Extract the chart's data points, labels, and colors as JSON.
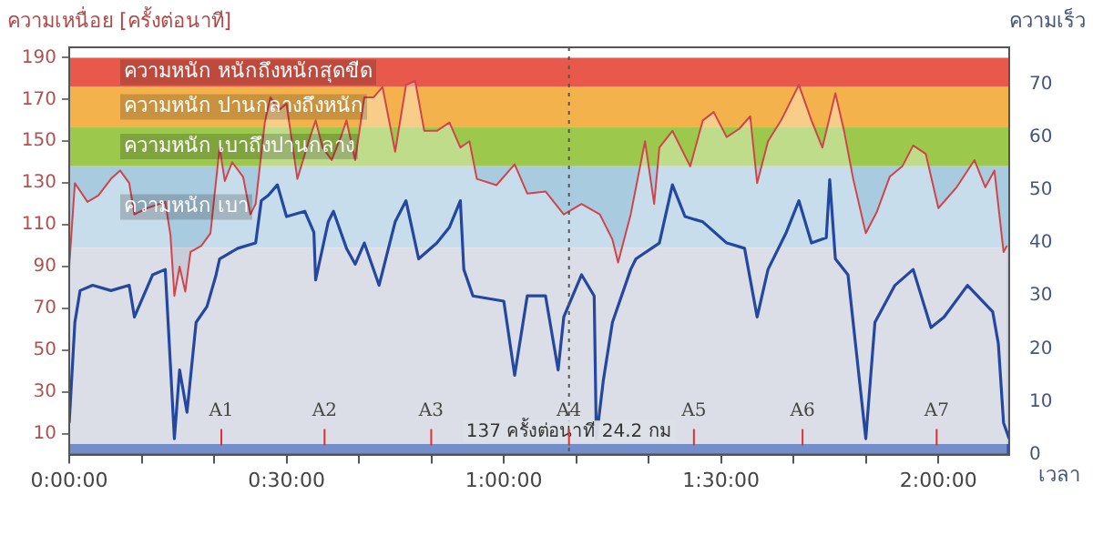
{
  "chart_data": {
    "type": "line",
    "ylabel": "ความเหนื่อย [ครั้งต่อนาที]",
    "y2label": "ความเร็ว",
    "xlabel": "เวลา",
    "xlim": [
      0,
      2.163
    ],
    "xticks": [
      {
        "value": 0,
        "label": "0:00:00"
      },
      {
        "value": 0.1667,
        "label": null
      },
      {
        "value": 0.3333,
        "label": null
      },
      {
        "value": 0.5,
        "label": "0:30:00"
      },
      {
        "value": 0.6667,
        "label": null
      },
      {
        "value": 0.8333,
        "label": null
      },
      {
        "value": 1,
        "label": "1:00:00"
      },
      {
        "value": 1.1667,
        "label": null
      },
      {
        "value": 1.3333,
        "label": null
      },
      {
        "value": 1.5,
        "label": "1:30:00"
      },
      {
        "value": 1.6667,
        "label": null
      },
      {
        "value": 1.8333,
        "label": null
      },
      {
        "value": 2,
        "label": "2:00:00"
      }
    ],
    "ylim": [
      0,
      195
    ],
    "yticks": [
      10,
      30,
      50,
      70,
      90,
      110,
      130,
      150,
      170,
      190
    ],
    "y2lim": [
      0,
      77
    ],
    "y2ticks": [
      0,
      10,
      20,
      30,
      40,
      50,
      60,
      70
    ],
    "grid": false,
    "marker": "none",
    "line_style": "solid",
    "bands": [
      {
        "axis": "y",
        "from": 176,
        "to": 190,
        "label": "ความหนัก หนักถึงหนักสุดขีด",
        "color": "#e8594b"
      },
      {
        "axis": "y",
        "from": 157,
        "to": 176,
        "label": "ความหนัก ปานกลางถึงหนัก",
        "color": "#f4b24c"
      },
      {
        "axis": "y",
        "from": 138,
        "to": 157,
        "label": "ความหนัก เบาถึงปานกลาง",
        "color": "#9cc94c"
      },
      {
        "axis": "y",
        "from": 99,
        "to": 138,
        "label": "ความหนัก เบา",
        "color": "#a9cbe0"
      },
      {
        "axis": "y",
        "from": 0,
        "to": 99,
        "label": null,
        "color": "#c8cdd9"
      },
      {
        "axis": "y",
        "from": 0,
        "to": 5,
        "label": null,
        "color": "#2a52b0"
      }
    ],
    "ref_lines": [
      {
        "axis": "x",
        "value": 1.15,
        "label": "137 ครั้งต่อนาที 24.2 กม",
        "color": "#555555",
        "line_style": "dotted"
      },
      {
        "axis": "x",
        "value": 0.35,
        "label": "A1",
        "color": "#e03030"
      },
      {
        "axis": "x",
        "value": 0.5875,
        "label": "A2",
        "color": "#e03030"
      },
      {
        "axis": "x",
        "value": 0.833,
        "label": "A3",
        "color": "#e03030"
      },
      {
        "axis": "x",
        "value": 1.15,
        "label": "A4",
        "color": "#e03030"
      },
      {
        "axis": "x",
        "value": 1.4375,
        "label": "A5",
        "color": "#e03030"
      },
      {
        "axis": "x",
        "value": 1.6875,
        "label": "A6",
        "color": "#e03030"
      },
      {
        "axis": "x",
        "value": 1.996,
        "label": "A7",
        "color": "#e03030"
      }
    ],
    "series": [
      {
        "type": "area",
        "color": "#d0454c",
        "x": [
          0,
          0.013,
          0.042,
          0.067,
          0.096,
          0.117,
          0.138,
          0.15,
          0.179,
          0.221,
          0.233,
          0.242,
          0.254,
          0.267,
          0.279,
          0.304,
          0.325,
          0.346,
          0.358,
          0.375,
          0.4,
          0.417,
          0.429,
          0.45,
          0.463,
          0.483,
          0.5,
          0.525,
          0.554,
          0.567,
          0.583,
          0.604,
          0.625,
          0.638,
          0.658,
          0.679,
          0.7,
          0.721,
          0.75,
          0.775,
          0.796,
          0.817,
          0.846,
          0.875,
          0.9,
          0.921,
          0.938,
          0.983,
          1.025,
          1.054,
          1.096,
          1.138,
          1.179,
          1.221,
          1.25,
          1.263,
          1.292,
          1.325,
          1.346,
          1.358,
          1.388,
          1.429,
          1.458,
          1.483,
          1.513,
          1.542,
          1.567,
          1.583,
          1.608,
          1.638,
          1.679,
          1.708,
          1.733,
          1.763,
          1.783,
          1.804,
          1.833,
          1.858,
          1.888,
          1.917,
          1.942,
          1.971,
          2.0,
          2.042,
          2.083,
          2.108,
          2.129,
          2.15,
          2.158
        ],
        "values": [
          90,
          130,
          121,
          124,
          132,
          136,
          130,
          115,
          118,
          121,
          105,
          76,
          90,
          78,
          97,
          100,
          106,
          147,
          131,
          140,
          133,
          115,
          120,
          159,
          171,
          165,
          168,
          132,
          152,
          160,
          147,
          141,
          152,
          160,
          141,
          171,
          171,
          176,
          145,
          177,
          179,
          155,
          155,
          159,
          147,
          150,
          132,
          129,
          139,
          125,
          126,
          115,
          120,
          115,
          103,
          92,
          115,
          150,
          120,
          147,
          155,
          138,
          160,
          164,
          152,
          156,
          162,
          130,
          150,
          160,
          177,
          160,
          147,
          173,
          155,
          132,
          106,
          116,
          133,
          138,
          148,
          144,
          118,
          128,
          141,
          128,
          136,
          97,
          100
        ]
      },
      {
        "axis": "y2",
        "color": "#2447a0",
        "x": [
          0,
          0.013,
          0.025,
          0.054,
          0.096,
          0.138,
          0.15,
          0.192,
          0.221,
          0.242,
          0.254,
          0.271,
          0.292,
          0.317,
          0.338,
          0.346,
          0.388,
          0.429,
          0.442,
          0.458,
          0.479,
          0.5,
          0.542,
          0.563,
          0.567,
          0.596,
          0.608,
          0.638,
          0.658,
          0.679,
          0.713,
          0.75,
          0.775,
          0.804,
          0.846,
          0.875,
          0.9,
          0.908,
          0.929,
          1.0,
          1.025,
          1.054,
          1.096,
          1.125,
          1.138,
          1.179,
          1.208,
          1.213,
          1.229,
          1.25,
          1.292,
          1.304,
          1.358,
          1.388,
          1.417,
          1.458,
          1.513,
          1.554,
          1.583,
          1.608,
          1.65,
          1.679,
          1.708,
          1.742,
          1.75,
          1.763,
          1.792,
          1.833,
          1.854,
          1.9,
          1.942,
          1.983,
          2.013,
          2.067,
          2.125,
          2.138,
          2.15,
          2.163
        ],
        "values": [
          6,
          25,
          31,
          32,
          31,
          32,
          26,
          34,
          35,
          3,
          16,
          8,
          25,
          28,
          34,
          37,
          39,
          40,
          48,
          49,
          51,
          45,
          46,
          42,
          33,
          44,
          46,
          39,
          36,
          40,
          32,
          44,
          48,
          37,
          40,
          43,
          48,
          35,
          30,
          29,
          15,
          30,
          30,
          16,
          26,
          34,
          30,
          3,
          14,
          25,
          35,
          37,
          40,
          51,
          45,
          44,
          40,
          39,
          26,
          35,
          42,
          48,
          40,
          41,
          52,
          37,
          34,
          3,
          25,
          32,
          35,
          24,
          26,
          32,
          27,
          21,
          6,
          3
        ]
      }
    ]
  }
}
